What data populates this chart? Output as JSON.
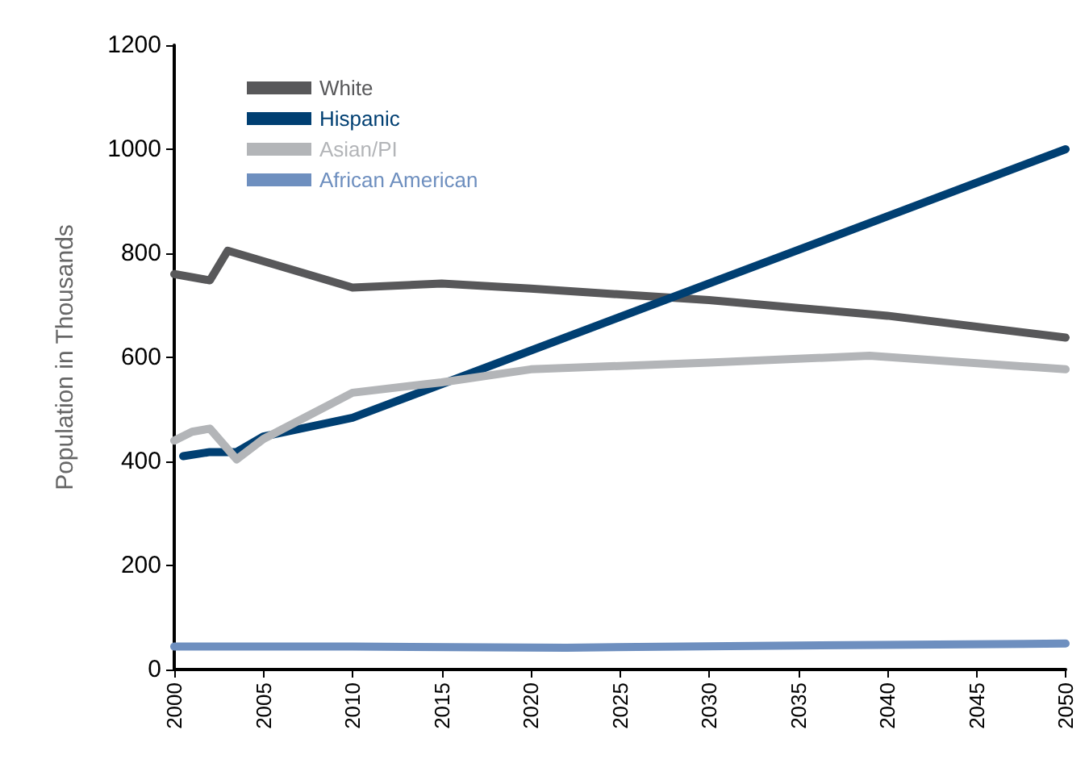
{
  "chart_data": {
    "type": "line",
    "ylabel": "Population in Thousands",
    "xlim": [
      2000,
      2050
    ],
    "xticks": [
      2000,
      2005,
      2010,
      2015,
      2020,
      2025,
      2030,
      2035,
      2040,
      2045,
      2050
    ],
    "ylim": [
      0,
      1200
    ],
    "yticks": [
      0,
      200,
      400,
      600,
      800,
      1000,
      1200
    ],
    "grid": false,
    "legend": "top left",
    "marker": "none",
    "line_style": "solid",
    "series": [
      {
        "name": "White",
        "color": "#58585a",
        "x": [
          2000,
          2002,
          2003,
          2010,
          2015,
          2020,
          2030,
          2040,
          2050
        ],
        "values": [
          760,
          748,
          805,
          734,
          742,
          732,
          710,
          680,
          638
        ]
      },
      {
        "name": "Hispanic",
        "color": "#003f72",
        "x": [
          2000.5,
          2002,
          2003.5,
          2005,
          2010,
          2050
        ],
        "values": [
          410,
          418,
          418,
          448,
          484,
          1000
        ]
      },
      {
        "name": "Asian/PI",
        "color": "#b3b5b8",
        "x": [
          2000,
          2001,
          2002,
          2003.5,
          2005,
          2010,
          2015,
          2020,
          2030,
          2039,
          2050
        ],
        "values": [
          440,
          457,
          463,
          404,
          443,
          532,
          552,
          577,
          590,
          603,
          577
        ]
      },
      {
        "name": "African American",
        "color": "#6e8fbf",
        "x": [
          2000,
          2010,
          2022,
          2035,
          2050
        ],
        "values": [
          44,
          44,
          42,
          46,
          50
        ]
      }
    ]
  }
}
